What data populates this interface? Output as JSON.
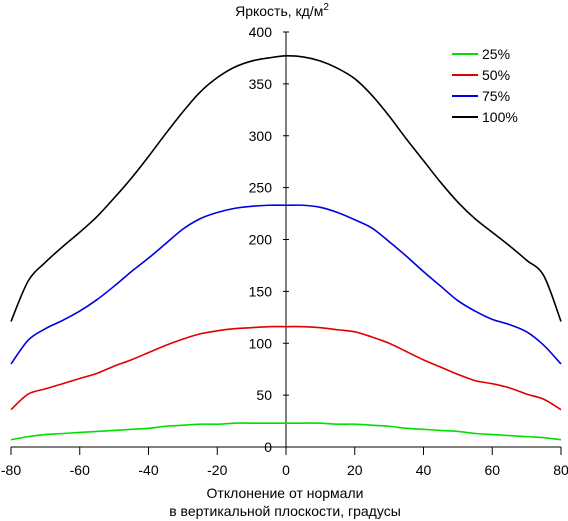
{
  "chart_data": {
    "type": "line",
    "title": "Яркость, кд/м",
    "title_superscript": "2",
    "xlabel_line1": "Отклонение от нормали",
    "xlabel_line2": "в вертикальной плоскости, градусы",
    "xlim": [
      -80,
      80
    ],
    "ylim": [
      0,
      400
    ],
    "x_ticks": [
      -80,
      -60,
      -40,
      -20,
      0,
      20,
      40,
      60,
      80
    ],
    "y_ticks": [
      0,
      50,
      100,
      150,
      200,
      250,
      300,
      350,
      400
    ],
    "grid": false,
    "legend_position": "top-right",
    "x": [
      -80,
      -75,
      -70,
      -65,
      -60,
      -55,
      -50,
      -45,
      -40,
      -35,
      -30,
      -25,
      -20,
      -15,
      -10,
      -5,
      0,
      5,
      10,
      15,
      20,
      25,
      30,
      35,
      40,
      45,
      50,
      55,
      60,
      65,
      70,
      75,
      80
    ],
    "series": [
      {
        "name": "25%",
        "color": "#00e000",
        "values": [
          7,
          10,
          12,
          13,
          14,
          15,
          16,
          17,
          18,
          20,
          21,
          22,
          22,
          23,
          23,
          23,
          23,
          23,
          23,
          22,
          22,
          21,
          20,
          18,
          17,
          16,
          15,
          13,
          12,
          11,
          10,
          9,
          7
        ]
      },
      {
        "name": "50%",
        "color": "#e00000",
        "values": [
          36,
          51,
          56,
          61,
          66,
          71,
          78,
          84,
          91,
          98,
          104,
          109,
          112,
          114,
          115,
          116,
          116,
          116,
          115,
          113,
          111,
          106,
          100,
          92,
          84,
          77,
          70,
          64,
          61,
          57,
          51,
          46,
          36
        ]
      },
      {
        "name": "75%",
        "color": "#0000e0",
        "values": [
          80,
          103,
          114,
          122,
          131,
          142,
          155,
          169,
          182,
          196,
          210,
          220,
          226,
          230,
          232,
          233,
          233,
          233,
          231,
          226,
          219,
          211,
          198,
          184,
          169,
          155,
          141,
          131,
          123,
          118,
          111,
          98,
          80
        ]
      },
      {
        "name": "100%",
        "color": "#000000",
        "values": [
          121,
          160,
          178,
          193,
          207,
          222,
          240,
          259,
          280,
          302,
          323,
          342,
          356,
          366,
          372,
          375,
          377,
          376,
          372,
          365,
          355,
          339,
          319,
          297,
          276,
          255,
          236,
          220,
          207,
          194,
          180,
          165,
          121
        ]
      }
    ]
  }
}
